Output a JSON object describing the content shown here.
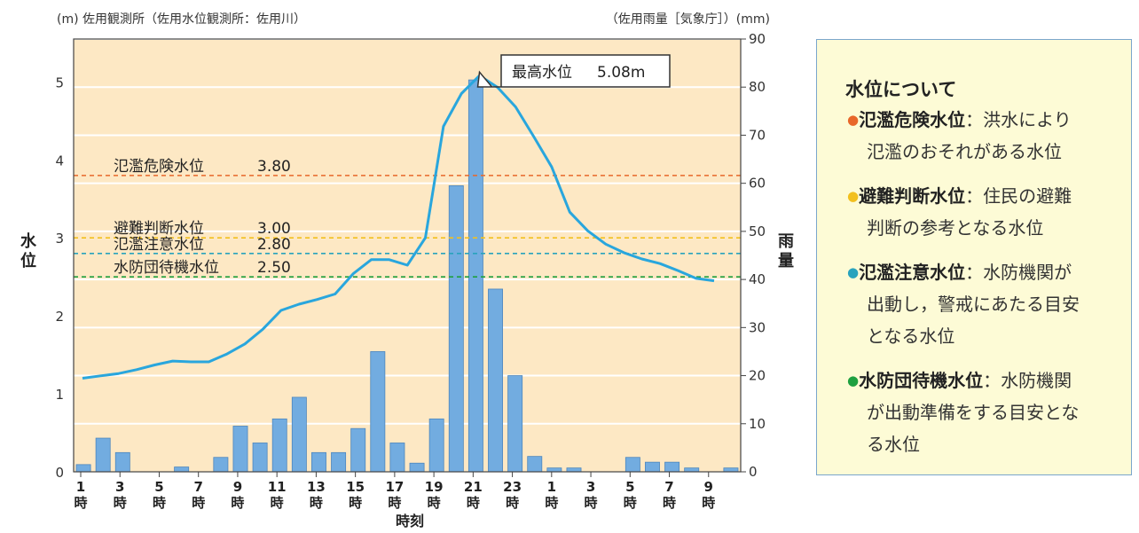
{
  "chart_data": {
    "type": "bar+line",
    "left_axis_title": "(m) 佐用観測所（佐用水位観測所：佐用川）",
    "right_axis_title": "（佐用雨量［気象庁］）(mm)",
    "y_left_label": "水位",
    "y_right_label": "雨量",
    "xlabel": "時刻",
    "y_left_ticks": [
      "0",
      "1",
      "2",
      "3",
      "4",
      "5"
    ],
    "y_right_ticks": [
      "0",
      "10",
      "20",
      "30",
      "40",
      "50",
      "60",
      "70",
      "80",
      "90"
    ],
    "x_tick_labels": [
      {
        "hour": "1",
        "suffix": "時"
      },
      {
        "hour": "3",
        "suffix": "時"
      },
      {
        "hour": "5",
        "suffix": "時"
      },
      {
        "hour": "7",
        "suffix": "時"
      },
      {
        "hour": "9",
        "suffix": "時"
      },
      {
        "hour": "11",
        "suffix": "時"
      },
      {
        "hour": "13",
        "suffix": "時"
      },
      {
        "hour": "15",
        "suffix": "時"
      },
      {
        "hour": "17",
        "suffix": "時"
      },
      {
        "hour": "19",
        "suffix": "時"
      },
      {
        "hour": "21",
        "suffix": "時"
      },
      {
        "hour": "23",
        "suffix": "時"
      },
      {
        "hour": "1",
        "suffix": "時"
      },
      {
        "hour": "3",
        "suffix": "時"
      },
      {
        "hour": "5",
        "suffix": "時"
      },
      {
        "hour": "7",
        "suffix": "時"
      },
      {
        "hour": "9",
        "suffix": "時"
      }
    ],
    "left_range": [
      0,
      5.55
    ],
    "right_range": [
      0,
      90
    ],
    "rainfall_mm": [
      1.5,
      7,
      4,
      0,
      0,
      1,
      0,
      3,
      9.5,
      6,
      11,
      15.5,
      4,
      4,
      9,
      25,
      6,
      1.8,
      11,
      59.5,
      81.5,
      38,
      20,
      3.2,
      0.8,
      0.8,
      0,
      0,
      3,
      2,
      2,
      0.8,
      0,
      0.8
    ],
    "water_level_m": [
      1.2,
      1.23,
      1.26,
      1.31,
      1.37,
      1.42,
      1.41,
      1.41,
      1.51,
      1.64,
      1.83,
      2.07,
      2.15,
      2.21,
      2.28,
      2.54,
      2.72,
      2.72,
      2.65,
      3.0,
      4.43,
      4.85,
      5.08,
      4.93,
      4.68,
      4.3,
      3.91,
      3.33,
      3.09,
      2.92,
      2.81,
      2.73,
      2.67,
      2.58,
      2.48,
      2.45
    ],
    "thresholds": [
      {
        "name": "氾濫危険水位",
        "value": 3.8,
        "label": "3.80",
        "color": "#e8672a"
      },
      {
        "name": "避難判断水位",
        "value": 3.0,
        "label": "3.00",
        "color": "#f2c01e"
      },
      {
        "name": "氾濫注意水位",
        "value": 2.8,
        "label": "2.80",
        "color": "#29a3bd"
      },
      {
        "name": "水防団待機水位",
        "value": 2.5,
        "label": "2.50",
        "color": "#1ea040"
      }
    ],
    "peak_annotation": {
      "label": "最高水位",
      "value": "5.08m"
    },
    "colors": {
      "plot_bg": "#fde8c4",
      "bar": "#72ace0",
      "line": "#29a6dd"
    }
  },
  "legend_panel": {
    "title": "水位について",
    "items": [
      {
        "name": "氾濫危険水位",
        "desc_line1": "：洪水により",
        "desc_rest": [
          "氾濫のおそれがある水位"
        ],
        "symbol": "●",
        "color": "#e8672a"
      },
      {
        "name": "避難判断水位",
        "desc_line1": "：住民の避難",
        "desc_rest": [
          "判断の参考となる水位"
        ],
        "symbol": "●",
        "color": "#f2c01e"
      },
      {
        "name": "氾濫注意水位",
        "desc_line1": "：水防機関が",
        "desc_rest": [
          "出動し，警戒にあたる目安",
          "となる水位"
        ],
        "symbol": "●",
        "color": "#29a3bd"
      },
      {
        "name": "水防団待機水位",
        "desc_line1": "：水防機関",
        "desc_rest": [
          "が出動準備をする目安とな",
          "る水位"
        ],
        "symbol": "●",
        "color": "#1ea040"
      }
    ]
  }
}
